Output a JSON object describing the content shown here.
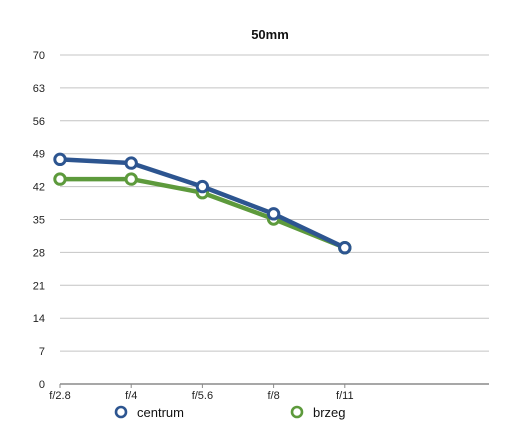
{
  "colors": {
    "centrum": "#2d5590",
    "brzeg": "#5d9a3c",
    "grid": "#c4c4c4",
    "axis": "#8a8a8a"
  },
  "chart_data": {
    "type": "line",
    "title": "50mm",
    "categories": [
      "f/2.8",
      "f/4",
      "f/5.6",
      "f/8",
      "f/11"
    ],
    "ylim": [
      0,
      70
    ],
    "yticks": [
      0,
      7,
      14,
      21,
      28,
      35,
      42,
      49,
      56,
      63,
      70
    ],
    "grid": true,
    "legend_position": "bottom",
    "series": [
      {
        "name": "centrum",
        "values": [
          47.8,
          47.0,
          42.0,
          36.2,
          29.0
        ]
      },
      {
        "name": "brzeg",
        "values": [
          43.6,
          43.6,
          40.7,
          35.1,
          29.0
        ]
      }
    ]
  }
}
